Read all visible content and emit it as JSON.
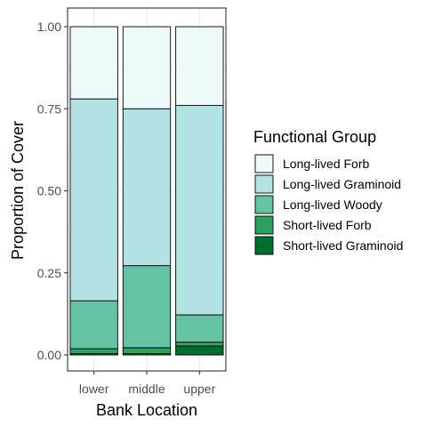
{
  "chart_data": {
    "type": "bar",
    "stacked": true,
    "categories": [
      "lower",
      "middle",
      "upper"
    ],
    "series": [
      {
        "name": "Long-lived Forb",
        "color": "#edf8fb",
        "values": [
          0.22,
          0.25,
          0.24
        ]
      },
      {
        "name": "Long-lived Graminoid",
        "color": "#b2e2e2",
        "values": [
          0.615,
          0.478,
          0.638
        ]
      },
      {
        "name": "Long-lived Woody",
        "color": "#66c2a4",
        "values": [
          0.146,
          0.25,
          0.083
        ]
      },
      {
        "name": "Short-lived Forb",
        "color": "#2ca25f",
        "values": [
          0.015,
          0.018,
          0.012
        ]
      },
      {
        "name": "Short-lived Graminoid",
        "color": "#006d2c",
        "values": [
          0.004,
          0.004,
          0.027
        ]
      }
    ],
    "xlabel": "Bank Location",
    "ylabel": "Proportion of Cover",
    "ylim": [
      0,
      1
    ],
    "yticks": [
      "0.00",
      "0.25",
      "0.50",
      "0.75",
      "1.00"
    ],
    "legend": {
      "title": "Functional Group",
      "position": "right"
    },
    "grid": true
  }
}
